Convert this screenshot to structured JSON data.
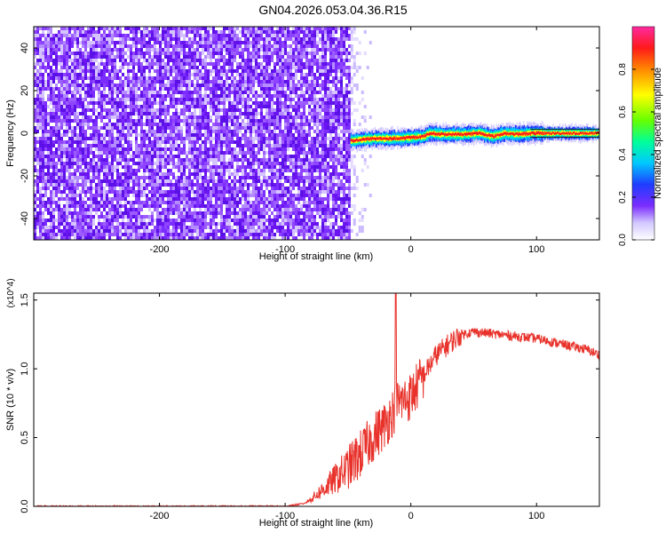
{
  "title": "GN04.2026.053.04.36.R15",
  "chart_data": [
    {
      "type": "heatmap",
      "name": "spectrogram",
      "xlabel": "Height of straight line (km)",
      "ylabel": "Frequency (Hz)",
      "xlim": [
        -300,
        150
      ],
      "ylim": [
        -50,
        50
      ],
      "xticks": [
        -200,
        -100,
        0,
        100
      ],
      "yticks": [
        -40,
        -20,
        0,
        20,
        40
      ],
      "colorbar": {
        "label": "Normalized spectral amplitude",
        "range": [
          0,
          1
        ],
        "ticks": [
          0.0,
          0.2,
          0.4,
          0.6,
          0.8
        ],
        "tick_labels": [
          "0.0",
          "0.2",
          "0.4",
          "0.6",
          "0.8"
        ],
        "colors": [
          "#ffffff",
          "#d2c8ff",
          "#7b2cff",
          "#1f3dff",
          "#00c8ff",
          "#00ff9a",
          "#66ff00",
          "#ffff00",
          "#ff8800",
          "#ff1a1a",
          "#ff2aa0"
        ]
      },
      "regions": [
        {
          "x_from": -300,
          "x_to": -48,
          "freq_from": -50,
          "freq_to": 50,
          "amplitude": [
            0.05,
            0.2
          ]
        },
        {
          "x_from": -48,
          "x_to": -30,
          "freq_from": -50,
          "freq_to": 50,
          "amplitude": [
            0.0,
            0.05
          ]
        },
        {
          "x_from": -48,
          "x_to": 150,
          "freq_from": -5,
          "freq_to": 5,
          "amplitude": [
            0.2,
            1.0
          ]
        }
      ],
      "peak_track": {
        "x": [
          -48,
          -30,
          -10,
          0,
          10,
          15,
          25,
          40,
          55,
          65,
          75,
          85,
          95,
          110,
          130,
          150
        ],
        "freq": [
          -3.5,
          -2.5,
          -2.5,
          -2,
          -1.5,
          0,
          -0.5,
          -0.5,
          0,
          -1.5,
          0,
          -0.5,
          0,
          0,
          0,
          0
        ]
      }
    },
    {
      "type": "line",
      "name": "snr",
      "xlabel": "Height of straight line (km)",
      "ylabel": "SNR (10 * v/v)",
      "y_multiplier": "(x10^4)",
      "xlim": [
        -300,
        150
      ],
      "ylim": [
        0,
        1.55
      ],
      "xticks": [
        -200,
        -100,
        0,
        100
      ],
      "yticks": [
        0.0,
        0.5,
        1.0,
        1.5
      ],
      "ytick_labels": [
        "0.0",
        "0.5",
        "1.0",
        "1.5"
      ],
      "series_color": "#e8322b",
      "x": [
        -300,
        -250,
        -200,
        -150,
        -100,
        -85,
        -80,
        -70,
        -60,
        -50,
        -40,
        -30,
        -20,
        -15,
        -10,
        0,
        10,
        20,
        30,
        40,
        50,
        60,
        70,
        80,
        90,
        100,
        110,
        120,
        130,
        140,
        150
      ],
      "y": [
        0.0,
        0.0,
        0.0,
        0.0,
        0.0,
        0.02,
        0.05,
        0.12,
        0.2,
        0.28,
        0.38,
        0.5,
        0.6,
        0.68,
        0.75,
        0.8,
        0.95,
        1.1,
        1.18,
        1.25,
        1.27,
        1.26,
        1.25,
        1.24,
        1.23,
        1.22,
        1.2,
        1.18,
        1.16,
        1.14,
        1.1
      ],
      "spike": {
        "x": -12,
        "y": 1.55
      }
    }
  ]
}
